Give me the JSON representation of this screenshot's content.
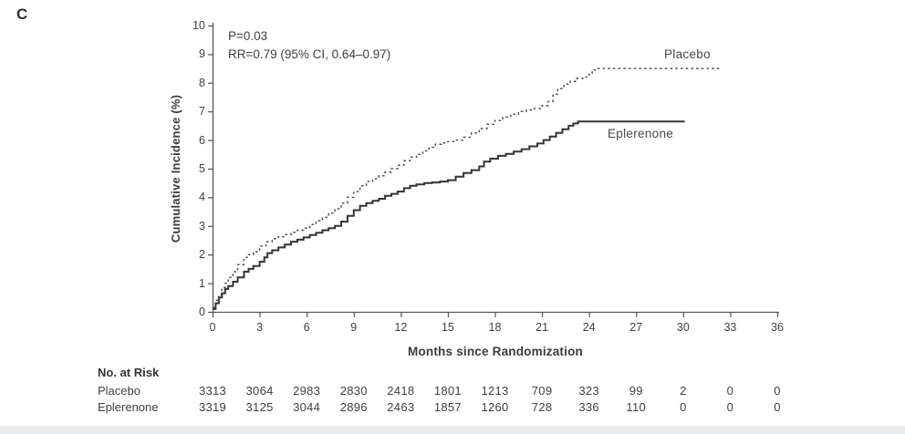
{
  "panel_label": "C",
  "annotation": {
    "p_value": "P=0.03",
    "rr": "RR=0.79 (95% CI, 0.64–0.97)"
  },
  "colors": {
    "axis": "#555555",
    "text": "#3b3b3b",
    "placebo_curve": "#4f4f4f",
    "eplerenone_curve": "#333333",
    "bottom_bar": "#e9edf0"
  },
  "chart_data": {
    "type": "line",
    "subtype": "kaplan-meier-step",
    "title": "",
    "xlabel": "Months since Randomization",
    "ylabel": "Cumulative Incidence (%)",
    "xlim": [
      0,
      36
    ],
    "ylim": [
      0,
      10
    ],
    "x_ticks": [
      0,
      3,
      6,
      9,
      12,
      15,
      18,
      21,
      24,
      27,
      30,
      33,
      36
    ],
    "y_ticks": [
      0,
      1,
      2,
      3,
      4,
      5,
      6,
      7,
      8,
      9,
      10
    ],
    "grid": false,
    "legend_position": "curve-end-labels",
    "series": [
      {
        "name": "Placebo",
        "style": "dashed",
        "points": [
          [
            0,
            0.15
          ],
          [
            0.2,
            0.4
          ],
          [
            0.4,
            0.6
          ],
          [
            0.6,
            0.85
          ],
          [
            0.8,
            1.0
          ],
          [
            1,
            1.2
          ],
          [
            1.3,
            1.4
          ],
          [
            1.6,
            1.65
          ],
          [
            2,
            1.9
          ],
          [
            2.3,
            2.0
          ],
          [
            2.6,
            2.1
          ],
          [
            3,
            2.3
          ],
          [
            3.4,
            2.45
          ],
          [
            3.8,
            2.55
          ],
          [
            4.2,
            2.62
          ],
          [
            4.6,
            2.7
          ],
          [
            5,
            2.78
          ],
          [
            5.4,
            2.85
          ],
          [
            5.8,
            2.92
          ],
          [
            6.2,
            3.05
          ],
          [
            6.6,
            3.18
          ],
          [
            7,
            3.3
          ],
          [
            7.4,
            3.45
          ],
          [
            7.8,
            3.6
          ],
          [
            8.2,
            3.8
          ],
          [
            8.6,
            4.0
          ],
          [
            9,
            4.2
          ],
          [
            9.4,
            4.4
          ],
          [
            9.8,
            4.55
          ],
          [
            10.2,
            4.65
          ],
          [
            10.6,
            4.75
          ],
          [
            11,
            4.88
          ],
          [
            11.4,
            5.0
          ],
          [
            11.8,
            5.12
          ],
          [
            12.2,
            5.28
          ],
          [
            12.6,
            5.4
          ],
          [
            13,
            5.5
          ],
          [
            13.4,
            5.62
          ],
          [
            13.8,
            5.75
          ],
          [
            14.2,
            5.85
          ],
          [
            14.6,
            5.9
          ],
          [
            15,
            5.95
          ],
          [
            15.5,
            6.0
          ],
          [
            16,
            6.1
          ],
          [
            16.5,
            6.25
          ],
          [
            17,
            6.4
          ],
          [
            17.5,
            6.55
          ],
          [
            18,
            6.68
          ],
          [
            18.5,
            6.8
          ],
          [
            19,
            6.9
          ],
          [
            19.5,
            7.0
          ],
          [
            20,
            7.05
          ],
          [
            20.5,
            7.1
          ],
          [
            21,
            7.2
          ],
          [
            21.4,
            7.35
          ],
          [
            21.7,
            7.6
          ],
          [
            22,
            7.8
          ],
          [
            22.4,
            7.95
          ],
          [
            22.8,
            8.05
          ],
          [
            23.2,
            8.15
          ],
          [
            23.6,
            8.2
          ],
          [
            24,
            8.3
          ],
          [
            24.2,
            8.45
          ],
          [
            24.5,
            8.5
          ],
          [
            32.4,
            8.5
          ]
        ]
      },
      {
        "name": "Eplerenone",
        "style": "solid",
        "points": [
          [
            0,
            0.1
          ],
          [
            0.2,
            0.3
          ],
          [
            0.4,
            0.5
          ],
          [
            0.6,
            0.65
          ],
          [
            0.8,
            0.8
          ],
          [
            1,
            0.9
          ],
          [
            1.3,
            1.05
          ],
          [
            1.6,
            1.2
          ],
          [
            2,
            1.4
          ],
          [
            2.3,
            1.5
          ],
          [
            2.6,
            1.6
          ],
          [
            3,
            1.75
          ],
          [
            3.3,
            1.9
          ],
          [
            3.5,
            2.05
          ],
          [
            3.8,
            2.15
          ],
          [
            4.2,
            2.25
          ],
          [
            4.6,
            2.35
          ],
          [
            5,
            2.45
          ],
          [
            5.4,
            2.52
          ],
          [
            5.8,
            2.6
          ],
          [
            6.2,
            2.68
          ],
          [
            6.6,
            2.76
          ],
          [
            7,
            2.85
          ],
          [
            7.4,
            2.92
          ],
          [
            7.8,
            3.0
          ],
          [
            8.2,
            3.15
          ],
          [
            8.6,
            3.35
          ],
          [
            9,
            3.55
          ],
          [
            9.4,
            3.7
          ],
          [
            9.8,
            3.8
          ],
          [
            10.2,
            3.88
          ],
          [
            10.6,
            3.95
          ],
          [
            11,
            4.05
          ],
          [
            11.4,
            4.12
          ],
          [
            11.8,
            4.2
          ],
          [
            12.2,
            4.32
          ],
          [
            12.6,
            4.4
          ],
          [
            13,
            4.45
          ],
          [
            13.5,
            4.5
          ],
          [
            14,
            4.52
          ],
          [
            14.5,
            4.55
          ],
          [
            15,
            4.6
          ],
          [
            15.5,
            4.72
          ],
          [
            16,
            4.85
          ],
          [
            16.5,
            4.95
          ],
          [
            17,
            5.08
          ],
          [
            17.3,
            5.25
          ],
          [
            17.7,
            5.35
          ],
          [
            18.2,
            5.45
          ],
          [
            18.7,
            5.52
          ],
          [
            19.2,
            5.6
          ],
          [
            19.7,
            5.68
          ],
          [
            20.2,
            5.78
          ],
          [
            20.7,
            5.88
          ],
          [
            21.1,
            6.0
          ],
          [
            21.5,
            6.12
          ],
          [
            21.9,
            6.25
          ],
          [
            22.3,
            6.38
          ],
          [
            22.7,
            6.5
          ],
          [
            23,
            6.58
          ],
          [
            23.3,
            6.65
          ],
          [
            30.1,
            6.65
          ]
        ]
      }
    ]
  },
  "risk_table": {
    "title": "No. at Risk",
    "rows": [
      {
        "label": "Placebo",
        "values": [
          "3313",
          "3064",
          "2983",
          "2830",
          "2418",
          "1801",
          "1213",
          "709",
          "323",
          "99",
          "2",
          "0",
          "0"
        ]
      },
      {
        "label": "Eplerenone",
        "values": [
          "3319",
          "3125",
          "3044",
          "2896",
          "2463",
          "1857",
          "1260",
          "728",
          "336",
          "110",
          "0",
          "0",
          "0"
        ]
      }
    ]
  }
}
